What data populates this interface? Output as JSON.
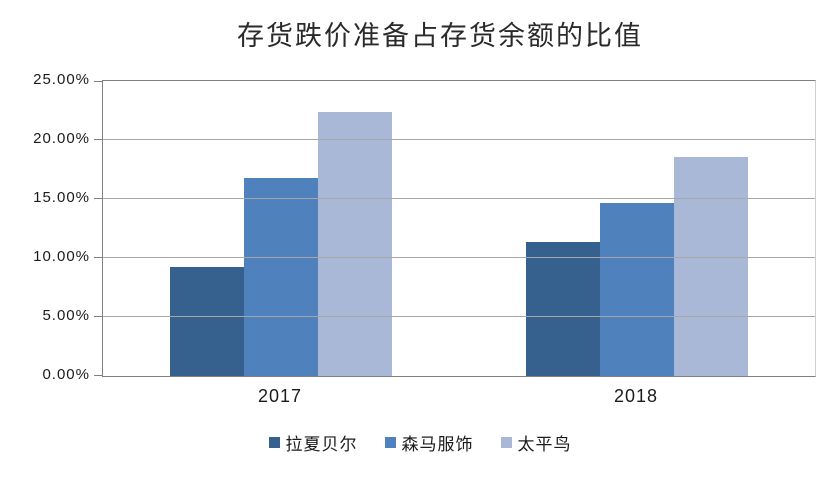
{
  "chart_data": {
    "type": "bar",
    "title": "存货跌价准备占存货余额的比值",
    "categories": [
      "2017",
      "2018"
    ],
    "series": [
      {
        "name": "拉夏贝尔",
        "color": "#36618F",
        "values": [
          9.2,
          11.4
        ]
      },
      {
        "name": "森马服饰",
        "color": "#4F81BD",
        "values": [
          16.8,
          14.7
        ]
      },
      {
        "name": "太平鸟",
        "color": "#AAB8D8",
        "values": [
          22.4,
          18.6
        ]
      }
    ],
    "xlabel": "",
    "ylabel": "",
    "ylim": [
      0,
      25
    ],
    "ytick_step": 5,
    "ytick_labels": [
      "25.00%",
      "20.00%",
      "15.00%",
      "10.00%",
      "5.00%",
      "0.00%"
    ],
    "grid": true,
    "legend_position": "bottom"
  },
  "colors": {
    "axis_border": "#808080",
    "gridline": "#a6a6a6",
    "text": "#1b1b1b",
    "background": "#ffffff"
  }
}
